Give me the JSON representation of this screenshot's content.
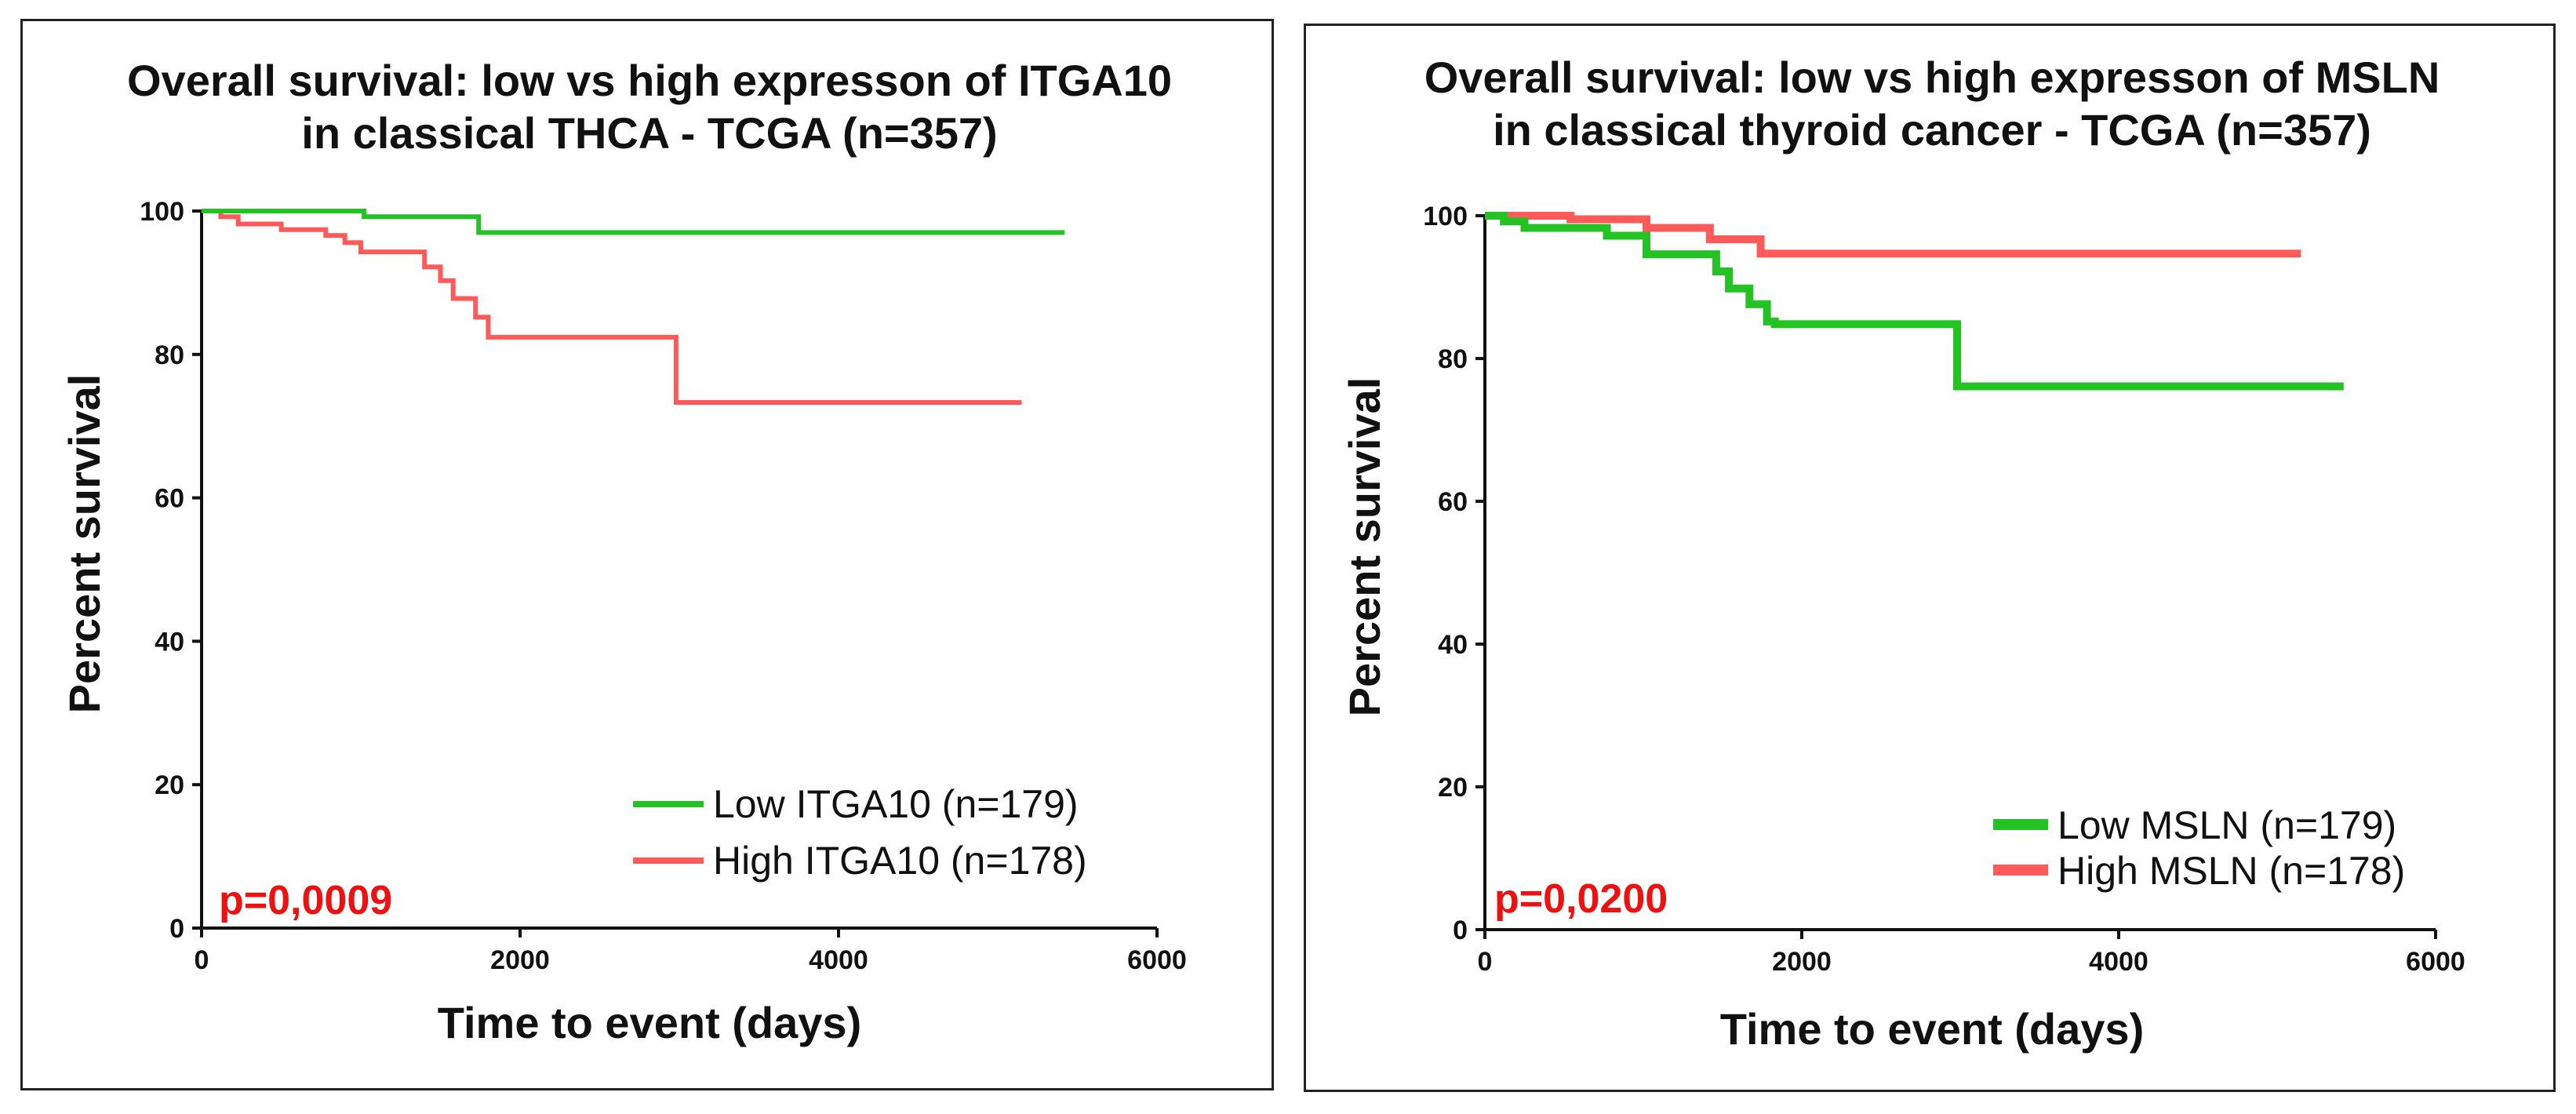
{
  "chart_data": [
    {
      "type": "line",
      "subtype": "kaplan-meier",
      "title": [
        "Overall survival: low vs high expresson of ITGA10",
        "in classical THCA - TCGA (n=357)"
      ],
      "xlabel": "Time to event (days)",
      "ylabel": "Percent survival",
      "xlim": [
        0,
        6000
      ],
      "ylim": [
        0,
        100
      ],
      "xticks": [
        0,
        2000,
        4000,
        6000
      ],
      "yticks": [
        0,
        20,
        40,
        60,
        80,
        100
      ],
      "pvalue": "p=0,0009",
      "legend_position": "bottom-right",
      "series": [
        {
          "name": "Low ITGA10 (n=179)",
          "color": "#22c322",
          "points": [
            [
              0,
              100
            ],
            [
              1020,
              100
            ],
            [
              1020,
              99.2
            ],
            [
              1740,
              99.2
            ],
            [
              1740,
              97
            ],
            [
              5420,
              97
            ]
          ]
        },
        {
          "name": "High ITGA10 (n=178)",
          "color": "#ff5a5a",
          "points": [
            [
              0,
              100
            ],
            [
              120,
              100
            ],
            [
              120,
              99.2
            ],
            [
              230,
              99.2
            ],
            [
              230,
              98.2
            ],
            [
              500,
              98.2
            ],
            [
              500,
              97.4
            ],
            [
              780,
              97.4
            ],
            [
              780,
              96.6
            ],
            [
              900,
              96.6
            ],
            [
              900,
              95.6
            ],
            [
              1000,
              95.6
            ],
            [
              1000,
              94.3
            ],
            [
              1400,
              94.3
            ],
            [
              1400,
              92.2
            ],
            [
              1500,
              92.2
            ],
            [
              1500,
              90.3
            ],
            [
              1580,
              90.3
            ],
            [
              1580,
              87.8
            ],
            [
              1720,
              87.8
            ],
            [
              1720,
              85.2
            ],
            [
              1800,
              85.2
            ],
            [
              1800,
              82.4
            ],
            [
              2980,
              82.4
            ],
            [
              2980,
              73.3
            ],
            [
              5150,
              73.3
            ]
          ]
        }
      ]
    },
    {
      "type": "line",
      "subtype": "kaplan-meier",
      "title": [
        "Overall survival: low vs high expresson of MSLN",
        "in classical thyroid cancer - TCGA (n=357)"
      ],
      "xlabel": "Time to event (days)",
      "ylabel": "Percent survival",
      "xlim": [
        0,
        6000
      ],
      "ylim": [
        0,
        100
      ],
      "xticks": [
        0,
        2000,
        4000,
        6000
      ],
      "yticks": [
        0,
        20,
        40,
        60,
        80,
        100
      ],
      "pvalue": "p=0,0200",
      "legend_position": "bottom-right",
      "series": [
        {
          "name": "Low MSLN (n=179)",
          "color": "#22c322",
          "points": [
            [
              0,
              100
            ],
            [
              120,
              100
            ],
            [
              120,
              99.2
            ],
            [
              250,
              99.2
            ],
            [
              250,
              98.3
            ],
            [
              770,
              98.3
            ],
            [
              770,
              97.2
            ],
            [
              1020,
              97.2
            ],
            [
              1020,
              94.6
            ],
            [
              1460,
              94.6
            ],
            [
              1460,
              92.2
            ],
            [
              1540,
              92.2
            ],
            [
              1540,
              89.8
            ],
            [
              1670,
              89.8
            ],
            [
              1670,
              87.6
            ],
            [
              1780,
              87.6
            ],
            [
              1780,
              85.2
            ],
            [
              1830,
              85.2
            ],
            [
              1830,
              84.8
            ],
            [
              2980,
              84.8
            ],
            [
              2980,
              76.1
            ],
            [
              5420,
              76.1
            ]
          ]
        },
        {
          "name": "High MSLN (n=178)",
          "color": "#ff5a5a",
          "points": [
            [
              0,
              100
            ],
            [
              540,
              100
            ],
            [
              540,
              99.5
            ],
            [
              1020,
              99.5
            ],
            [
              1020,
              98.3
            ],
            [
              1420,
              98.3
            ],
            [
              1420,
              96.7
            ],
            [
              1740,
              96.7
            ],
            [
              1740,
              94.7
            ],
            [
              5150,
              94.7
            ]
          ]
        }
      ]
    }
  ]
}
